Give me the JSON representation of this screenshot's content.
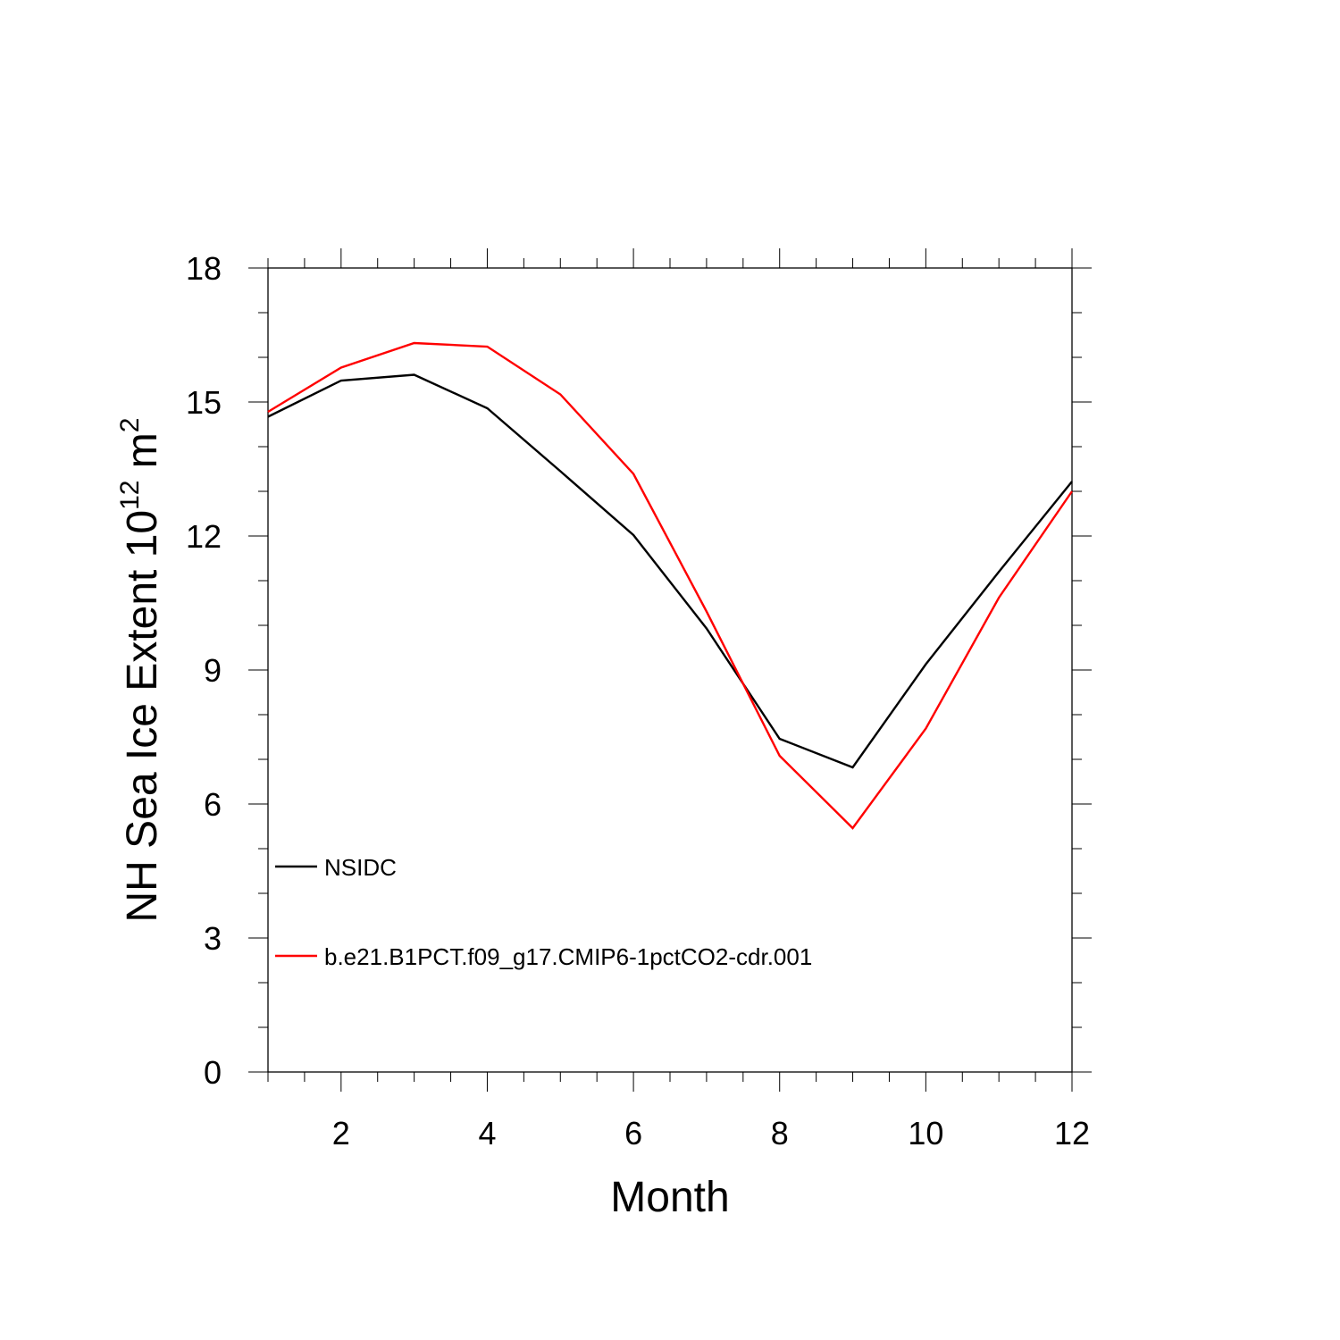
{
  "chart_data": {
    "type": "line",
    "title": "",
    "xlabel": "Month",
    "ylabel": {
      "prefix": "NH Sea Ice Extent 10",
      "sup1": "12",
      "mid": " m",
      "sup2": "2"
    },
    "xlim": [
      1,
      12
    ],
    "ylim": [
      0,
      18
    ],
    "x_ticks": [
      2,
      4,
      6,
      8,
      10,
      12
    ],
    "y_ticks": [
      0,
      3,
      6,
      9,
      12,
      15,
      18
    ],
    "grid": false,
    "legend_position": "left, inside plot",
    "x": [
      1,
      2,
      3,
      4,
      5,
      6,
      7,
      8,
      9,
      10,
      11,
      12
    ],
    "series": [
      {
        "name": "NSIDC",
        "color": "#000000",
        "values": [
          14.67,
          15.48,
          15.61,
          14.86,
          13.45,
          12.02,
          9.93,
          7.46,
          6.82,
          9.13,
          11.2,
          13.22
        ]
      },
      {
        "name": "b.e21.B1PCT.f09_g17.CMIP6-1pctCO2-cdr.001",
        "color": "#ff0000",
        "values": [
          14.78,
          15.77,
          16.32,
          16.24,
          15.17,
          13.39,
          10.31,
          7.08,
          5.46,
          7.69,
          10.62,
          13.0
        ]
      }
    ]
  }
}
